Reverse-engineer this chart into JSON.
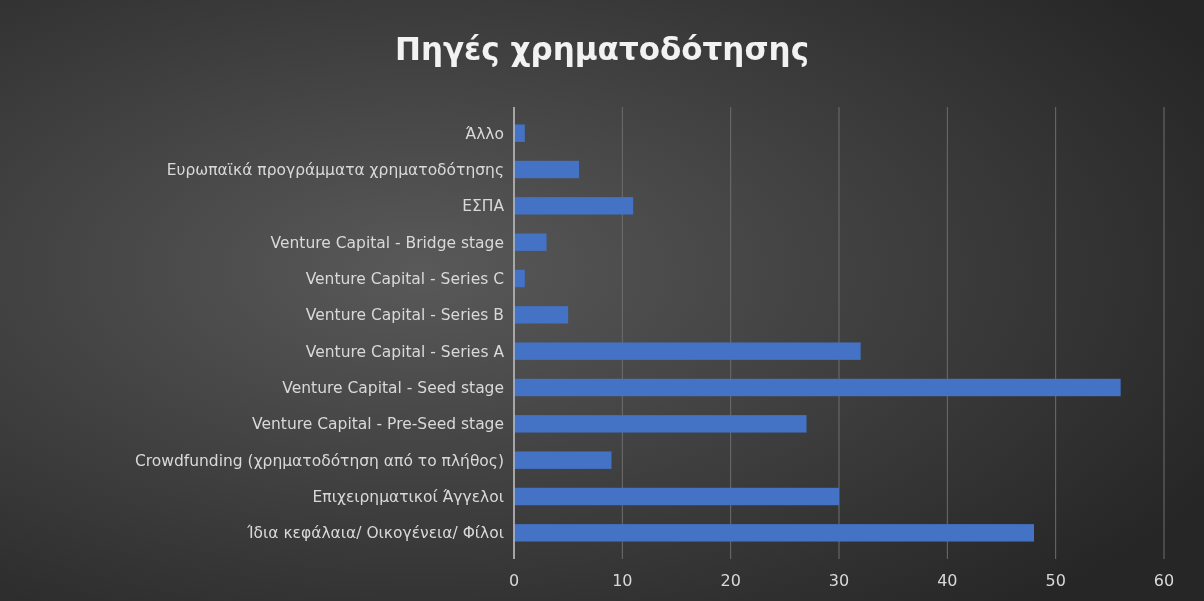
{
  "chart_data": {
    "type": "bar",
    "orientation": "horizontal",
    "title": "Πηγές χρηματοδότησης",
    "categories": [
      "Άλλο",
      "Ευρωπαϊκά προγράμματα χρηματοδότησης",
      "ΕΣΠΑ",
      "Venture Capital - Bridge stage",
      "Venture Capital - Series C",
      "Venture Capital - Series B",
      "Venture Capital - Series A",
      "Venture Capital - Seed stage",
      "Venture Capital - Pre-Seed stage",
      "Crowdfunding (χρηματοδότηση από το πλήθος)",
      "Επιχειρηματικοί Άγγελοι",
      "Ίδια κεφάλαια/ Οικογένεια/ Φίλοι"
    ],
    "values": [
      1,
      6,
      11,
      3,
      1,
      5,
      32,
      56,
      27,
      9,
      30,
      48
    ],
    "color": "#4472c4",
    "xlim": [
      0,
      60
    ],
    "xticks": [
      0,
      10,
      20,
      30,
      40,
      50,
      60
    ],
    "grid": "x"
  }
}
